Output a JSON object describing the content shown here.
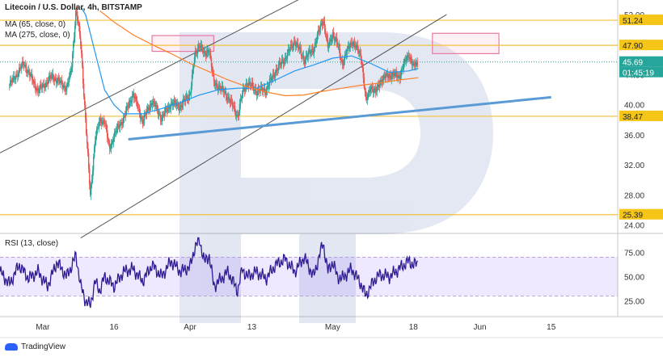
{
  "legend": {
    "symbol": "Litecoin / U.S. Dollar, 4h, BITSTAMP",
    "ma65": "MA (65, close, 0)",
    "ma275": "MA (275, close, 0)",
    "rsi": "RSI (13, close)"
  },
  "branding": {
    "name": "TradingView"
  },
  "chart_data": [
    {
      "type": "candlestick",
      "title": "Litecoin / U.S. Dollar, 4h, BITSTAMP",
      "ylim": [
        23,
        53.5
      ],
      "y_ticks": [
        "52.00",
        "48.00",
        "44.00",
        "40.00",
        "36.00",
        "32.00",
        "28.00",
        "24.00"
      ],
      "y_tick_values": [
        52,
        48,
        44,
        40,
        36,
        32,
        28,
        24
      ],
      "x_ticks": [
        "Mar",
        "16",
        "Apr",
        "13",
        "May",
        "18",
        "Jun",
        "15"
      ],
      "x_tick_values": [
        1,
        16,
        32,
        45,
        62,
        79,
        93,
        108
      ],
      "xlim": [
        -8,
        122
      ],
      "price_labels": [
        {
          "text": "51.24",
          "value": 51.24,
          "color": "#f5c518"
        },
        {
          "text": "47.90",
          "value": 47.9,
          "color": "#f5c518"
        },
        {
          "text": "45.69",
          "value": 45.69,
          "color": "#26a69a"
        },
        {
          "text": "01:45:19",
          "value": 44.3,
          "color": "#26a69a"
        },
        {
          "text": "38.47",
          "value": 38.47,
          "color": "#f5c518"
        },
        {
          "text": "25.39",
          "value": 25.39,
          "color": "#f5c518"
        }
      ],
      "horizontal_levels": [
        51.24,
        47.9,
        38.47,
        25.39
      ],
      "current_price": 45.69,
      "resistance_zones": [
        {
          "x": [
            24,
            37
          ],
          "y": [
            47.1,
            49.2
          ]
        },
        {
          "x": [
            83,
            97
          ],
          "y": [
            46.8,
            49.5
          ]
        }
      ],
      "channel_lines": [
        {
          "x": [
            -8,
            58
          ],
          "y": [
            33.6,
            55
          ]
        },
        {
          "x": [
            9,
            86
          ],
          "y": [
            22.3,
            52
          ]
        }
      ],
      "trend_line": {
        "x": [
          19,
          108
        ],
        "y": [
          35.4,
          41.0
        ]
      },
      "price_path": {
        "x": [
          -6,
          -3,
          0,
          3,
          6,
          7,
          8,
          9,
          10,
          11,
          12,
          13,
          14,
          15,
          16,
          18,
          20,
          22,
          24,
          26,
          28,
          30,
          32,
          33,
          34,
          35,
          36,
          37,
          38,
          40,
          42,
          43,
          44,
          46,
          48,
          50,
          52,
          54,
          56,
          58,
          60,
          61,
          62,
          63,
          64,
          66,
          68,
          69,
          70,
          71,
          72,
          74,
          76,
          78,
          79,
          80
        ],
        "y": [
          42.6,
          45.5,
          41.8,
          43.8,
          42.2,
          44.5,
          52.8,
          48,
          38,
          27.8,
          35.5,
          37.8,
          38,
          34,
          36,
          38.2,
          41.5,
          37.8,
          40.5,
          38.2,
          40.2,
          39.8,
          41.5,
          46.5,
          48.2,
          46.5,
          47.5,
          42.8,
          42.5,
          41,
          38.5,
          41.5,
          43,
          41.8,
          42,
          44.5,
          46.2,
          48.5,
          46,
          47.5,
          51.5,
          47.5,
          49.5,
          48,
          45.5,
          48.5,
          46.5,
          40.3,
          42.5,
          41.5,
          43.2,
          44,
          43.8,
          46.8,
          45,
          45.69
        ]
      },
      "ma65_path": {
        "x": [
          9,
          10,
          12,
          14,
          16,
          18,
          22,
          26,
          30,
          34,
          38,
          42,
          46,
          50,
          54,
          58,
          62,
          66,
          70,
          74,
          78,
          80
        ],
        "y": [
          53,
          52,
          47,
          42,
          40,
          38.8,
          38.8,
          39.5,
          40.3,
          41.3,
          42,
          42.2,
          42.2,
          43.3,
          44.5,
          45.3,
          46.2,
          46.5,
          45.5,
          44.3,
          44.5,
          44.8
        ]
      },
      "ma275_path": {
        "x": [
          13,
          16,
          20,
          24,
          28,
          32,
          36,
          40,
          44,
          48,
          52,
          56,
          60,
          64,
          68,
          72,
          76,
          80
        ],
        "y": [
          52.5,
          51,
          49.3,
          48,
          46.8,
          45.5,
          44.4,
          43.3,
          42.4,
          41.7,
          41.2,
          41.3,
          41.8,
          42.2,
          42.6,
          42.9,
          43.3,
          43.6
        ]
      }
    },
    {
      "type": "line",
      "title": "RSI (13, close)",
      "ylim": [
        12,
        92
      ],
      "y_ticks": [
        "75.00",
        "50.00",
        "25.00"
      ],
      "y_tick_values": [
        75,
        50,
        25
      ],
      "band": [
        30,
        70
      ],
      "series": [
        {
          "x": [
            -8,
            -6,
            -4,
            -2,
            0,
            2,
            4,
            6,
            7,
            8,
            9,
            10,
            11,
            12,
            13,
            14,
            16,
            18,
            20,
            22,
            24,
            26,
            28,
            30,
            32,
            33,
            34,
            35,
            36,
            37,
            38,
            40,
            42,
            43,
            44,
            46,
            48,
            50,
            52,
            54,
            56,
            58,
            60,
            61,
            62,
            63,
            64,
            66,
            68,
            69,
            70,
            71,
            72,
            74,
            76,
            78,
            79,
            80
          ],
          "y": [
            55,
            42,
            62,
            48,
            55,
            40,
            65,
            50,
            60,
            72,
            40,
            25,
            20,
            45,
            35,
            50,
            40,
            55,
            58,
            45,
            62,
            50,
            66,
            55,
            60,
            80,
            88,
            65,
            72,
            40,
            45,
            55,
            35,
            58,
            50,
            55,
            48,
            62,
            68,
            55,
            70,
            50,
            85,
            55,
            65,
            50,
            48,
            58,
            42,
            30,
            40,
            48,
            52,
            50,
            58,
            66,
            62,
            64
          ]
        }
      ]
    }
  ]
}
